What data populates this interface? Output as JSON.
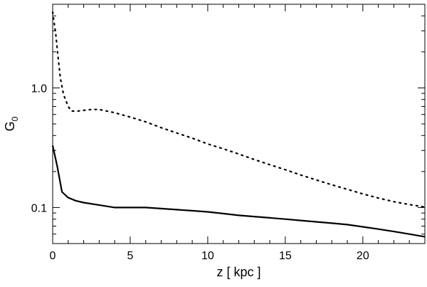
{
  "chart_data": {
    "type": "line",
    "xlabel": "z [ kpc ]",
    "ylabel": {
      "main": "G",
      "sub": "0"
    },
    "xlim": [
      0,
      24
    ],
    "ylim": [
      0.05,
      5.0
    ],
    "yscale": "log",
    "grid": false,
    "legend": "none",
    "x_ticks": [
      {
        "value": 0,
        "label": "0"
      },
      {
        "value": 5,
        "label": "5"
      },
      {
        "value": 10,
        "label": "10"
      },
      {
        "value": 15,
        "label": "15"
      },
      {
        "value": 20,
        "label": "20"
      }
    ],
    "y_ticks": [
      {
        "value": 0.1,
        "label": "0.1"
      },
      {
        "value": 1.0,
        "label": "1.0"
      }
    ],
    "series": [
      {
        "style": "dotted",
        "color": "#000000",
        "points": [
          [
            0.0,
            4.3
          ],
          [
            0.2,
            2.8
          ],
          [
            0.35,
            1.8
          ],
          [
            0.5,
            1.2
          ],
          [
            0.7,
            0.88
          ],
          [
            1.0,
            0.7
          ],
          [
            1.2,
            0.64
          ],
          [
            1.6,
            0.64
          ],
          [
            2.5,
            0.66
          ],
          [
            3.0,
            0.66
          ],
          [
            4.0,
            0.62
          ],
          [
            5.0,
            0.57
          ],
          [
            6.0,
            0.52
          ],
          [
            7.0,
            0.465
          ],
          [
            8.0,
            0.42
          ],
          [
            9.0,
            0.38
          ],
          [
            10.0,
            0.34
          ],
          [
            11.0,
            0.31
          ],
          [
            12.0,
            0.28
          ],
          [
            13.0,
            0.252
          ],
          [
            14.0,
            0.228
          ],
          [
            15.0,
            0.207
          ],
          [
            16.0,
            0.187
          ],
          [
            17.0,
            0.17
          ],
          [
            18.0,
            0.155
          ],
          [
            19.0,
            0.142
          ],
          [
            20.0,
            0.13
          ],
          [
            21.0,
            0.12
          ],
          [
            22.0,
            0.112
          ],
          [
            23.0,
            0.106
          ],
          [
            24.0,
            0.101
          ]
        ]
      },
      {
        "style": "solid",
        "color": "#000000",
        "points": [
          [
            0.0,
            0.33
          ],
          [
            0.3,
            0.22
          ],
          [
            0.6,
            0.135
          ],
          [
            1.0,
            0.121
          ],
          [
            1.5,
            0.114
          ],
          [
            2.0,
            0.11
          ],
          [
            3.0,
            0.105
          ],
          [
            4.0,
            0.1
          ],
          [
            5.0,
            0.1
          ],
          [
            6.0,
            0.1
          ],
          [
            7.0,
            0.098
          ],
          [
            8.0,
            0.096
          ],
          [
            9.0,
            0.094
          ],
          [
            10.0,
            0.092
          ],
          [
            11.0,
            0.089
          ],
          [
            12.0,
            0.086
          ],
          [
            13.0,
            0.084
          ],
          [
            14.0,
            0.082
          ],
          [
            15.0,
            0.08
          ],
          [
            16.0,
            0.078
          ],
          [
            17.0,
            0.076
          ],
          [
            18.0,
            0.074
          ],
          [
            19.0,
            0.072
          ],
          [
            20.0,
            0.069
          ],
          [
            21.0,
            0.066
          ],
          [
            22.0,
            0.063
          ],
          [
            23.0,
            0.06
          ],
          [
            24.0,
            0.057
          ]
        ]
      }
    ]
  }
}
